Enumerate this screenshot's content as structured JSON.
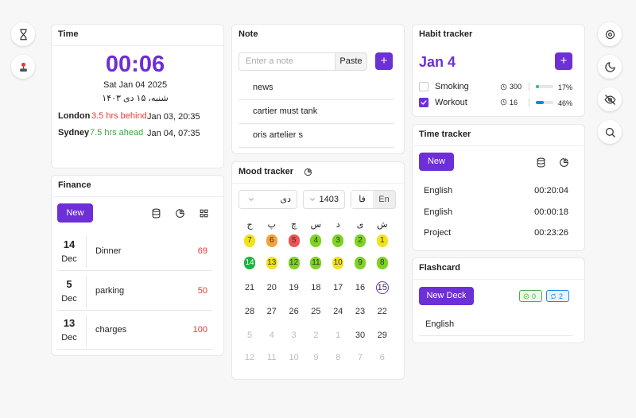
{
  "time": {
    "title": "Time",
    "clock": "00:06",
    "date": "Sat Jan 04 2025",
    "local_date": "شنبه، ۱۵ دی ۱۴۰۳",
    "cities": [
      {
        "name": "London",
        "offset": "3.5 hrs behind",
        "color": "#e53935",
        "datetime": "Jan 03, 20:35"
      },
      {
        "name": "Sydney",
        "offset": "7.5 hrs ahead",
        "color": "#43a047",
        "datetime": "Jan 04, 07:35"
      }
    ]
  },
  "finance": {
    "title": "Finance",
    "new_button": "New",
    "entries": [
      {
        "day": "14",
        "month": "Dec",
        "label": "Dinner",
        "amount": "69"
      },
      {
        "day": "5",
        "month": "Dec",
        "label": "parking",
        "amount": "50"
      },
      {
        "day": "13",
        "month": "Dec",
        "label": "charges",
        "amount": "100"
      }
    ]
  },
  "note": {
    "title": "Note",
    "placeholder": "Enter a note",
    "paste_button": "Paste",
    "add_button": "+",
    "items": [
      "news",
      "cartier must tank",
      "oris artelier s"
    ]
  },
  "mood": {
    "title": "Mood tracker",
    "month": "دی",
    "year": "1403",
    "languages": [
      "فا",
      "En"
    ],
    "weekdays": [
      "ج",
      "پ",
      "چ",
      "س",
      "د",
      "ی",
      "ش"
    ],
    "weeks": [
      [
        {
          "day": "7",
          "color": "#f2e21b"
        },
        {
          "day": "6",
          "color": "#f6a23a"
        },
        {
          "day": "5",
          "color": "#ef5350"
        },
        {
          "day": "4",
          "color": "#7ed321"
        },
        {
          "day": "3",
          "color": "#7ed321"
        },
        {
          "day": "2",
          "color": "#7ed321"
        },
        {
          "day": "1",
          "color": "#f2e21b"
        }
      ],
      [
        {
          "day": "14",
          "color": "#1db342"
        },
        {
          "day": "13",
          "color": "#f2e21b"
        },
        {
          "day": "12",
          "color": "#7ed321"
        },
        {
          "day": "11",
          "color": "#7ed321"
        },
        {
          "day": "10",
          "color": "#f2e21b"
        },
        {
          "day": "9",
          "color": "#7ed321"
        },
        {
          "day": "8",
          "color": "#7ed321"
        }
      ],
      [
        {
          "day": "21"
        },
        {
          "day": "20"
        },
        {
          "day": "19"
        },
        {
          "day": "18"
        },
        {
          "day": "17"
        },
        {
          "day": "16"
        },
        {
          "day": "15",
          "today": true
        }
      ],
      [
        {
          "day": "28"
        },
        {
          "day": "27"
        },
        {
          "day": "26"
        },
        {
          "day": "25"
        },
        {
          "day": "24"
        },
        {
          "day": "23"
        },
        {
          "day": "22"
        }
      ],
      [
        {
          "day": "5",
          "muted": true
        },
        {
          "day": "4",
          "muted": true
        },
        {
          "day": "3",
          "muted": true
        },
        {
          "day": "2",
          "muted": true
        },
        {
          "day": "1",
          "muted": true
        },
        {
          "day": "30"
        },
        {
          "day": "29"
        }
      ],
      [
        {
          "day": "12",
          "muted": true
        },
        {
          "day": "11",
          "muted": true
        },
        {
          "day": "10",
          "muted": true
        },
        {
          "day": "9",
          "muted": true
        },
        {
          "day": "8",
          "muted": true
        },
        {
          "day": "7",
          "muted": true
        },
        {
          "day": "6",
          "muted": true
        }
      ]
    ]
  },
  "habits": {
    "title": "Habit tracker",
    "date": "Jan 4",
    "add_button": "+",
    "entries": [
      {
        "name": "Smoking",
        "checked": false,
        "count": "300",
        "progress": {
          "value": 17,
          "label": "17%"
        },
        "color": "#22c55e"
      },
      {
        "name": "Workout",
        "checked": true,
        "count": "16",
        "progress": {
          "value": 46,
          "label": "46%"
        },
        "color": "#0b8fc9"
      }
    ]
  },
  "time_tracker": {
    "title": "Time tracker",
    "new_button": "New",
    "entries": [
      {
        "label": "English",
        "duration": "00:20:04"
      },
      {
        "label": "English",
        "duration": "00:00:18"
      },
      {
        "label": "Project",
        "duration": "00:23:26"
      }
    ]
  },
  "flashcard": {
    "title": "Flashcard",
    "new_button": "New Deck",
    "badges": [
      {
        "label": "0",
        "color": "#4caf50",
        "background": "#eef9ee"
      },
      {
        "label": "2",
        "color": "#1e88e5",
        "background": "#e8f3fd"
      }
    ],
    "decks": [
      "English"
    ]
  }
}
